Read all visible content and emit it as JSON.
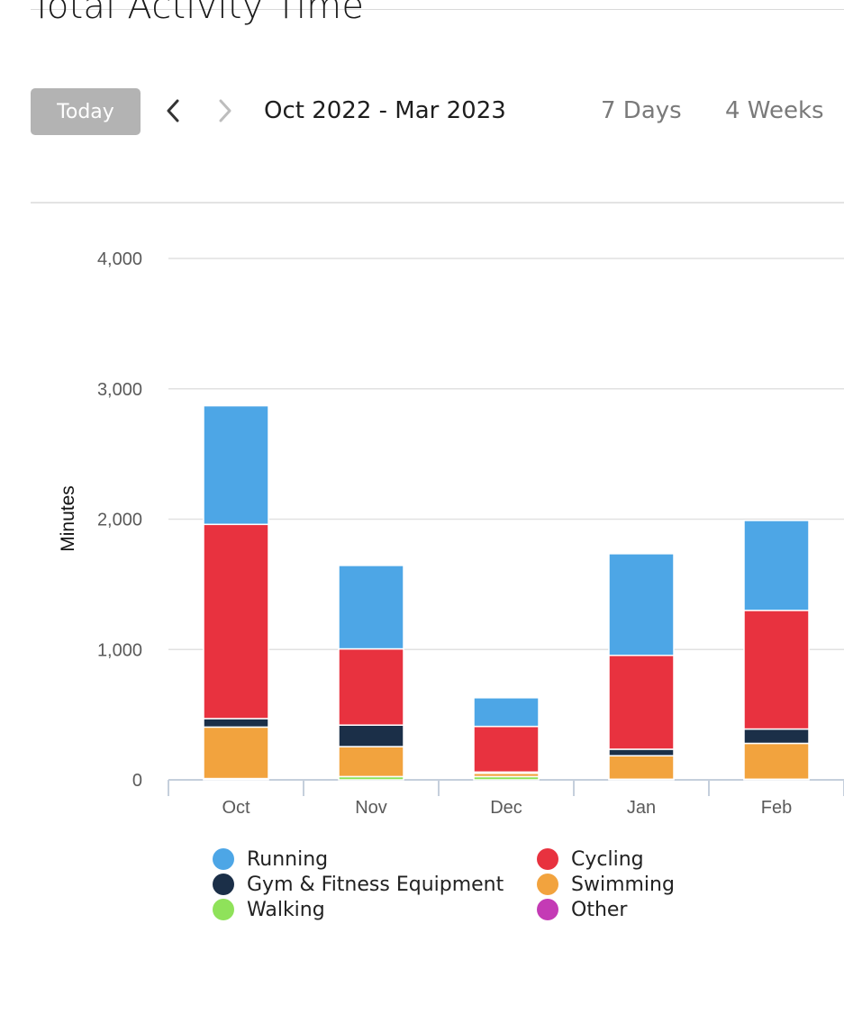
{
  "header": {
    "title": "Total Activity Time",
    "today_label": "Today",
    "prev_icon": "chevron-left-icon",
    "next_icon": "chevron-right-icon",
    "date_range": "Oct 2022 - Mar 2023",
    "periods": [
      "7 Days",
      "4 Weeks"
    ]
  },
  "colors": {
    "Running": "#4da6e6",
    "Cycling": "#e8323f",
    "Gym & Fitness Equipment": "#1b2f48",
    "Swimming": "#f2a33e",
    "Walking": "#8fe25a",
    "Other": "#c43bb5"
  },
  "chart_data": {
    "type": "bar",
    "stacked": true,
    "categories": [
      "Oct",
      "Nov",
      "Dec",
      "Jan",
      "Feb"
    ],
    "ylabel": "Minutes",
    "ylim": [
      0,
      4000
    ],
    "yticks": [
      "0",
      "1,000",
      "2,000",
      "3,000",
      "4,000"
    ],
    "grid": true,
    "legend_position": "bottom",
    "series": [
      {
        "name": "Walking",
        "values": [
          10,
          25,
          25,
          5,
          5
        ]
      },
      {
        "name": "Swimming",
        "values": [
          395,
          230,
          25,
          180,
          275
        ]
      },
      {
        "name": "Gym & Fitness Equipment",
        "values": [
          65,
          165,
          10,
          50,
          110
        ]
      },
      {
        "name": "Cycling",
        "values": [
          1490,
          585,
          350,
          720,
          910
        ]
      },
      {
        "name": "Running",
        "values": [
          910,
          640,
          220,
          780,
          690
        ]
      },
      {
        "name": "Other",
        "values": [
          0,
          0,
          0,
          0,
          0
        ]
      }
    ]
  },
  "legend": [
    {
      "label": "Running"
    },
    {
      "label": "Cycling"
    },
    {
      "label": "Gym & Fitness Equipment"
    },
    {
      "label": "Swimming"
    },
    {
      "label": "Walking"
    },
    {
      "label": "Other"
    }
  ]
}
